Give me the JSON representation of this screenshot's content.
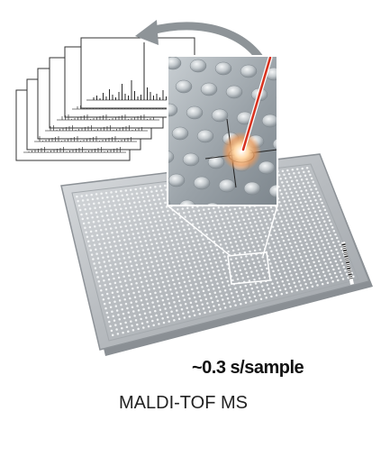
{
  "throughput": "~0.3 s/sample",
  "instrument": "MALDI-TOF MS",
  "colors": {
    "plate": "#b9bcbf",
    "laser": "#d8321f",
    "flash": "#ffb36b",
    "arrow": "#8e9498"
  }
}
